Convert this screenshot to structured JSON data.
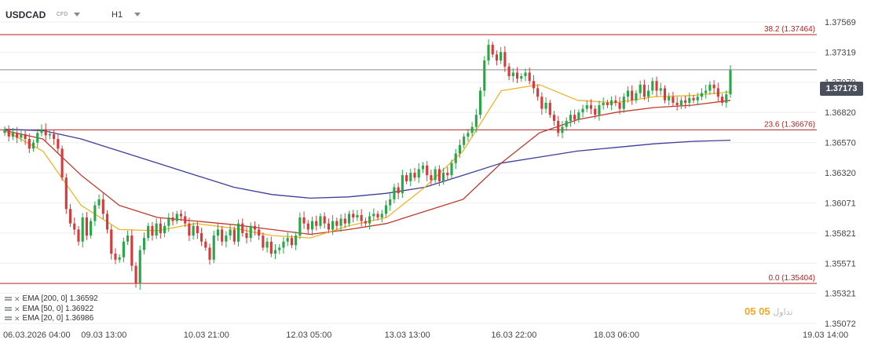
{
  "header": {
    "symbol": "USDCAD",
    "symbol_type": "CFD",
    "timeframe": "H1"
  },
  "price_tag": "1.37173",
  "indicators": [
    {
      "label": "EMA [200, 0] 1.36592",
      "color": "#3c3c9a"
    },
    {
      "label": "EMA [50, 0] 1.36922",
      "color": "#c0392b"
    },
    {
      "label": "EMA [20, 0] 1.36986",
      "color": "#f0b429"
    }
  ],
  "watermark": {
    "text": "05",
    "text2": "05",
    "grey": "تداول"
  },
  "colors": {
    "bull": "#27a745",
    "bear": "#d63a3a",
    "hline": "#b22222",
    "lastline": "#8a8a8a",
    "grid": "#eeeeee",
    "axis_text": "#444444"
  },
  "chart_data": {
    "type": "candlestick",
    "title": "USDCAD CFD H1",
    "y_ticks": [
      1.35072,
      1.35321,
      1.35571,
      1.35821,
      1.36071,
      1.3632,
      1.3657,
      1.3682,
      1.3707,
      1.37319,
      1.37569
    ],
    "y_tick_labels": [
      "1.35072",
      "1.35321",
      "1.35571",
      "1.35821",
      "1.36071",
      "1.36320",
      "1.36570",
      "1.36820",
      "1.37070",
      "1.37319",
      "1.37569"
    ],
    "x_tick_labels": [
      "06.03.2026 04:00",
      "09.03 13:00",
      "10.03 21:00",
      "12.03 05:00",
      "13.03 13:00",
      "16.03 22:00",
      "18.03 06:00",
      "19.03 14:00"
    ],
    "ylim": [
      1.35072,
      1.37569
    ],
    "horizontal_levels": [
      {
        "label": "38.2 (1.37464)",
        "value": 1.37464
      },
      {
        "label": "23.6 (1.36676)",
        "value": 1.36676
      },
      {
        "label": "0.0 (1.35404)",
        "value": 1.35404
      }
    ],
    "last_price": 1.37173,
    "close_series": [
      1.3668,
      1.3662,
      1.3665,
      1.3661,
      1.3664,
      1.366,
      1.3652,
      1.3657,
      1.3665,
      1.3668,
      1.3663,
      1.3664,
      1.366,
      1.3652,
      1.3628,
      1.3602,
      1.359,
      1.3585,
      1.3575,
      1.3595,
      1.358,
      1.3592,
      1.3605,
      1.361,
      1.3598,
      1.3585,
      1.3565,
      1.356,
      1.3562,
      1.3575,
      1.358,
      1.3555,
      1.354,
      1.3568,
      1.3578,
      1.3588,
      1.358,
      1.359,
      1.3582,
      1.3588,
      1.3595,
      1.3592,
      1.3598,
      1.3596,
      1.359,
      1.358,
      1.3588,
      1.3582,
      1.3575,
      1.357,
      1.356,
      1.358,
      1.3585,
      1.3575,
      1.358,
      1.3585,
      1.3575,
      1.359,
      1.3582,
      1.3578,
      1.3588,
      1.3585,
      1.358,
      1.357,
      1.3575,
      1.3565,
      1.3568,
      1.357,
      1.3575,
      1.3578,
      1.3572,
      1.358,
      1.3595,
      1.359,
      1.3585,
      1.3592,
      1.3588,
      1.3596,
      1.359,
      1.3585,
      1.3592,
      1.3588,
      1.3594,
      1.359,
      1.3598,
      1.3595,
      1.3597,
      1.3592,
      1.359,
      1.3596,
      1.3598,
      1.3595,
      1.3598,
      1.3605,
      1.361,
      1.362,
      1.3615,
      1.363,
      1.3625,
      1.3632,
      1.3628,
      1.3635,
      1.3638,
      1.363,
      1.3626,
      1.3635,
      1.3625,
      1.3632,
      1.363,
      1.364,
      1.3648,
      1.3655,
      1.3662,
      1.3665,
      1.367,
      1.368,
      1.37,
      1.3725,
      1.3738,
      1.373,
      1.3725,
      1.3732,
      1.372,
      1.3712,
      1.3715,
      1.371,
      1.3712,
      1.3715,
      1.3708,
      1.3702,
      1.3695,
      1.3685,
      1.369,
      1.368,
      1.3675,
      1.3665,
      1.367,
      1.3675,
      1.368,
      1.3676,
      1.3682,
      1.3685,
      1.3688,
      1.3685,
      1.368,
      1.3688,
      1.369,
      1.3688,
      1.3692,
      1.369,
      1.3685,
      1.3695,
      1.37,
      1.3692,
      1.3698,
      1.3705,
      1.3695,
      1.37,
      1.3708,
      1.37,
      1.3702,
      1.3692,
      1.3695,
      1.369,
      1.3688,
      1.3692,
      1.369,
      1.3694,
      1.3692,
      1.3695,
      1.3698,
      1.37,
      1.3705,
      1.3702,
      1.3695,
      1.369,
      1.3697,
      1.3717
    ],
    "ema20_anchors": [
      1.3667,
      1.365,
      1.3605,
      1.3585,
      1.3584,
      1.359,
      1.3586,
      1.358,
      1.3578,
      1.3588,
      1.3595,
      1.362,
      1.365,
      1.37,
      1.3705,
      1.3692,
      1.369,
      1.3695,
      1.3696,
      1.3699
    ],
    "ema50_anchors": [
      1.3667,
      1.366,
      1.363,
      1.3605,
      1.3595,
      1.3592,
      1.3589,
      1.3585,
      1.3581,
      1.3585,
      1.359,
      1.36,
      1.361,
      1.364,
      1.3665,
      1.3676,
      1.3682,
      1.3686,
      1.3688,
      1.3692
    ],
    "ema200_anchors": [
      1.3668,
      1.3667,
      1.366,
      1.365,
      1.364,
      1.363,
      1.362,
      1.3614,
      1.3611,
      1.3612,
      1.3615,
      1.362,
      1.363,
      1.364,
      1.3645,
      1.365,
      1.3653,
      1.3656,
      1.3658,
      1.3659
    ],
    "grid": true,
    "legend_position": "bottom-left"
  }
}
